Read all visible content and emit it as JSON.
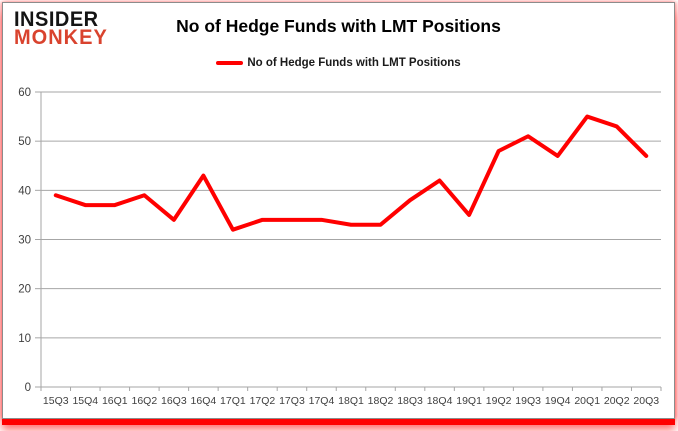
{
  "brand": {
    "line1": "INSIDER",
    "line2": "MONKEY",
    "line1_color": "#141414",
    "line2_color": "#d9432e"
  },
  "header": {
    "title": "No of Hedge Funds with LMT Positions"
  },
  "legend": {
    "label": "No of Hedge Funds with LMT Positions",
    "marker_color": "#ff0000",
    "position": "top-center"
  },
  "colors": {
    "accent_red": "#ff0000",
    "grid_gray": "#a6a6a6",
    "axis_gray": "#a6a6a6",
    "tick_label": "#404040",
    "card_border": "#8c8c8c",
    "background": "#ffffff"
  },
  "chart_data": {
    "type": "line",
    "title": "No of Hedge Funds with LMT Positions",
    "xlabel": "",
    "ylabel": "",
    "grid": true,
    "legend_position": "top",
    "ylim": [
      0,
      60
    ],
    "yticks": [
      0,
      10,
      20,
      30,
      40,
      50,
      60
    ],
    "categories": [
      "15Q3",
      "15Q4",
      "16Q1",
      "16Q2",
      "16Q3",
      "16Q4",
      "17Q1",
      "17Q2",
      "17Q3",
      "17Q4",
      "18Q1",
      "18Q2",
      "18Q3",
      "18Q4",
      "19Q1",
      "19Q2",
      "19Q3",
      "19Q4",
      "20Q1",
      "20Q2",
      "20Q3"
    ],
    "series": [
      {
        "name": "No of Hedge Funds with LMT Positions",
        "color": "#ff0000",
        "values": [
          39,
          37,
          37,
          39,
          34,
          43,
          32,
          34,
          34,
          34,
          33,
          33,
          38,
          42,
          35,
          48,
          51,
          47,
          55,
          53,
          47
        ]
      }
    ]
  }
}
